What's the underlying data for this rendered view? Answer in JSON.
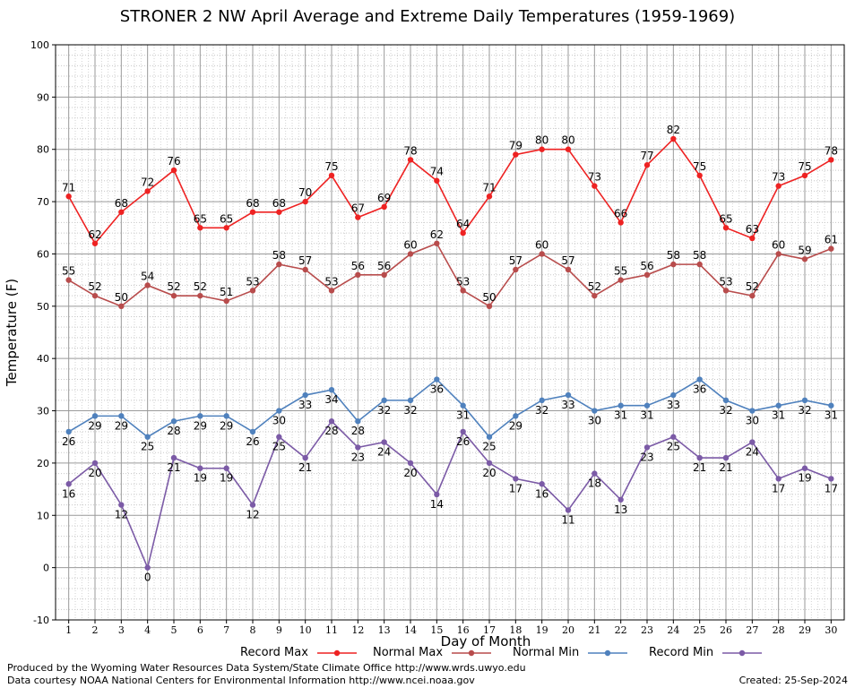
{
  "chart_data": {
    "type": "line",
    "title": "STRONER 2 NW April Average and Extreme Daily Temperatures (1959-1969)",
    "xlabel": "Day of Month",
    "ylabel": "Temperature (F)",
    "ylim": [
      -10,
      100
    ],
    "xlim": [
      0.5,
      30.5
    ],
    "yticks": [
      -10,
      0,
      10,
      20,
      30,
      40,
      50,
      60,
      70,
      80,
      90,
      100
    ],
    "x": [
      1,
      2,
      3,
      4,
      5,
      6,
      7,
      8,
      9,
      10,
      11,
      12,
      13,
      14,
      15,
      16,
      17,
      18,
      19,
      20,
      21,
      22,
      23,
      24,
      25,
      26,
      27,
      28,
      29,
      30
    ],
    "grid": true,
    "legend_position": "bottom",
    "series": [
      {
        "name": "Record Max",
        "color": "#ee2222",
        "values": [
          71,
          62,
          68,
          72,
          76,
          65,
          65,
          68,
          68,
          70,
          75,
          67,
          69,
          78,
          74,
          64,
          71,
          79,
          80,
          80,
          73,
          66,
          77,
          82,
          75,
          65,
          63,
          73,
          75,
          78
        ]
      },
      {
        "name": "Normal Max",
        "color": "#b84c4c",
        "values": [
          55,
          52,
          50,
          54,
          52,
          52,
          51,
          53,
          58,
          57,
          53,
          56,
          56,
          60,
          62,
          53,
          50,
          57,
          60,
          57,
          52,
          55,
          56,
          58,
          58,
          53,
          52,
          60,
          59,
          61
        ]
      },
      {
        "name": "Normal Min",
        "color": "#4f81bd",
        "values": [
          26,
          29,
          29,
          25,
          28,
          29,
          29,
          26,
          30,
          33,
          34,
          28,
          32,
          32,
          36,
          31,
          25,
          29,
          32,
          33,
          30,
          31,
          31,
          33,
          36,
          32,
          30,
          31,
          32,
          31
        ]
      },
      {
        "name": "Record Min",
        "color": "#7b5aa6",
        "values": [
          16,
          20,
          12,
          0,
          21,
          19,
          19,
          12,
          25,
          21,
          28,
          23,
          24,
          20,
          14,
          26,
          20,
          17,
          16,
          11,
          18,
          13,
          23,
          25,
          21,
          21,
          24,
          17,
          19,
          17
        ]
      }
    ]
  },
  "footer": {
    "produced_by": "Produced by the Wyoming Water Resources Data System/State Climate Office http://www.wrds.uwyo.edu",
    "data_courtesy": "Data courtesy NOAA National Centers for Environmental Information http://www.ncei.noaa.gov",
    "created": "Created: 25-Sep-2024"
  }
}
